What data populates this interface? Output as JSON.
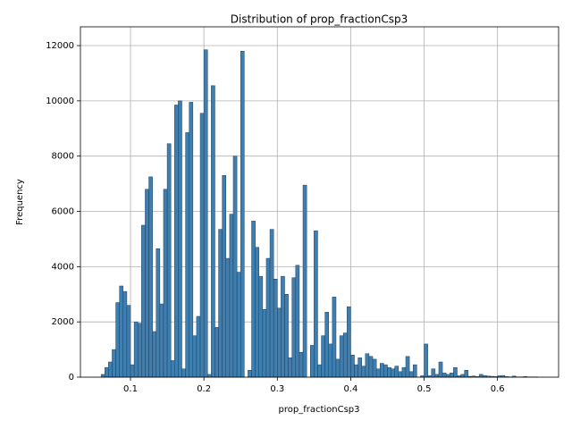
{
  "chart_data": {
    "type": "histogram",
    "title": "Distribution of prop_fractionCsp3",
    "x_label": "prop_fractionCsp3",
    "y_label": "Frequency",
    "bins": [
      0.06,
      0.065,
      0.07,
      0.075,
      0.08,
      0.085,
      0.09,
      0.095,
      0.1,
      0.105,
      0.11,
      0.115,
      0.12,
      0.125,
      0.13,
      0.135,
      0.14,
      0.145,
      0.15,
      0.155,
      0.16,
      0.165,
      0.17,
      0.175,
      0.18,
      0.185,
      0.19,
      0.195,
      0.2,
      0.205,
      0.21,
      0.215,
      0.22,
      0.225,
      0.23,
      0.235,
      0.24,
      0.245,
      0.25,
      0.255,
      0.26,
      0.265,
      0.27,
      0.275,
      0.28,
      0.285,
      0.29,
      0.295,
      0.3,
      0.305,
      0.31,
      0.315,
      0.32,
      0.325,
      0.33,
      0.335,
      0.34,
      0.345,
      0.35,
      0.355,
      0.36,
      0.365,
      0.37,
      0.375,
      0.38,
      0.385,
      0.39,
      0.395,
      0.4,
      0.405,
      0.41,
      0.415,
      0.42,
      0.425,
      0.43,
      0.435,
      0.44,
      0.445,
      0.45,
      0.455,
      0.46,
      0.465,
      0.47,
      0.475,
      0.48,
      0.485,
      0.49,
      0.495,
      0.5,
      0.505,
      0.51,
      0.515,
      0.52,
      0.525,
      0.53,
      0.535,
      0.54,
      0.545,
      0.55,
      0.555,
      0.56,
      0.565,
      0.57,
      0.575,
      0.58,
      0.585,
      0.59,
      0.595,
      0.6,
      0.605,
      0.61,
      0.615,
      0.62,
      0.625,
      0.63,
      0.635,
      0.64,
      0.645,
      0.65,
      0.655
    ],
    "values": [
      100,
      350,
      550,
      1000,
      2700,
      3300,
      3100,
      2600,
      450,
      2000,
      1950,
      5500,
      6800,
      7250,
      1650,
      4650,
      2650,
      6800,
      8450,
      600,
      9850,
      10000,
      300,
      8850,
      9950,
      1500,
      2200,
      9550,
      11850,
      100,
      10550,
      1800,
      5350,
      7300,
      4300,
      5900,
      8000,
      3800,
      11800,
      0,
      250,
      5650,
      4700,
      3650,
      2450,
      4300,
      5350,
      3550,
      2500,
      3650,
      3000,
      700,
      3600,
      4050,
      900,
      6950,
      0,
      1150,
      5300,
      450,
      1500,
      2350,
      1200,
      2900,
      650,
      1500,
      1600,
      2550,
      800,
      450,
      700,
      400,
      850,
      750,
      650,
      300,
      500,
      450,
      350,
      300,
      400,
      200,
      350,
      750,
      200,
      450,
      0,
      50,
      1200,
      50,
      300,
      100,
      550,
      150,
      100,
      150,
      350,
      50,
      100,
      250,
      30,
      40,
      20,
      100,
      60,
      40,
      30,
      20,
      50,
      60,
      20,
      10,
      40,
      10,
      10,
      20,
      10,
      10,
      10
    ],
    "color": "#3f7fb0",
    "edgecolor": "#1f3f5f",
    "xlim": [
      0.0318,
      0.6832
    ],
    "xticks": [
      0.1,
      0.2,
      0.3,
      0.4,
      0.5,
      0.6
    ],
    "ylim": [
      0,
      12680
    ],
    "yticks": [
      0,
      2000,
      4000,
      6000,
      8000,
      10000,
      12000
    ],
    "grid": true
  }
}
